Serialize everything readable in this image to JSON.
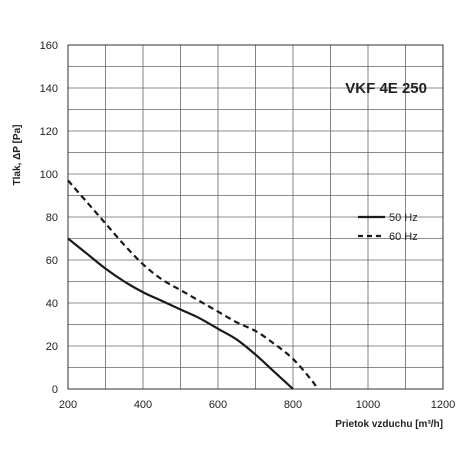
{
  "chart_data": {
    "type": "line",
    "title": "VKF 4E 250",
    "xlabel": "Prietok vzduchu",
    "xlabel_unit": "[m³/h]",
    "ylabel": "Tlak, ΔP [Pa]",
    "xlim": [
      200,
      1200
    ],
    "ylim": [
      0,
      160
    ],
    "x_ticks": [
      200,
      400,
      600,
      800,
      1000,
      1200
    ],
    "y_ticks": [
      0,
      20,
      40,
      60,
      80,
      100,
      120,
      140,
      160
    ],
    "grid": true,
    "legend_position": "right",
    "series": [
      {
        "name": "50 Hz",
        "style": "solid",
        "color": "#1a1a1a",
        "x": [
          200,
          250,
          300,
          350,
          400,
          450,
          500,
          550,
          600,
          650,
          700,
          750,
          800
        ],
        "y": [
          70,
          63,
          56,
          50,
          45,
          41,
          37,
          33,
          28,
          23,
          16,
          8,
          0
        ]
      },
      {
        "name": "60 Hz",
        "style": "dashed",
        "color": "#1a1a1a",
        "x": [
          200,
          250,
          300,
          350,
          400,
          450,
          500,
          550,
          600,
          650,
          700,
          750,
          800,
          850,
          865
        ],
        "y": [
          97,
          87,
          77,
          67,
          58,
          51,
          46,
          41,
          36,
          31,
          27,
          21,
          14,
          4,
          0
        ]
      }
    ]
  }
}
